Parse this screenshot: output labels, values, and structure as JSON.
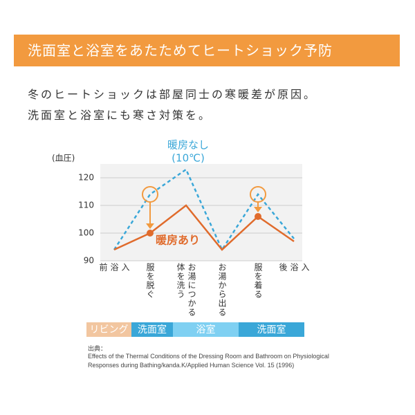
{
  "header": {
    "title": "洗面室と浴室をあたためてヒートショック予防"
  },
  "intro": [
    "冬のヒートショックは部屋同士の寒暖差が原因。",
    "洗面室と浴室にも寒さ対策を。"
  ],
  "chart_data": {
    "type": "line",
    "y_label": "(血圧)",
    "categories": [
      [
        "入",
        "浴",
        "前"
      ],
      [
        "服を脱ぐ"
      ],
      [
        "お湯につかる",
        "体を洗う"
      ],
      [
        "お湯から出る"
      ],
      [
        "服を着る"
      ],
      [
        "入",
        "浴",
        "後"
      ]
    ],
    "ylim": [
      90,
      125
    ],
    "yticks": [
      90,
      100,
      110,
      120
    ],
    "grid": true,
    "series": [
      {
        "name": "暖房なし",
        "color": "#3aa7d8",
        "dashed": true,
        "values": [
          94,
          114,
          123,
          94,
          114,
          98
        ]
      },
      {
        "name": "暖房あり",
        "color": "#e06b2c",
        "dashed": false,
        "values": [
          94,
          100,
          110,
          94,
          106,
          97
        ]
      }
    ],
    "annotation": "(10℃)",
    "rooms": [
      {
        "label": "リビング",
        "color": "#f2c6a0"
      },
      {
        "label": "洗面室",
        "color": "#3aa7d8"
      },
      {
        "label": "浴室",
        "color": "#7fd0f2"
      },
      {
        "label": "洗面室",
        "color": "#3aa7d8"
      }
    ]
  },
  "source": {
    "label": "出典：",
    "lines": [
      "Effects of the Thermal Conditions of the Dressing Room and Bathroom on Physiological",
      "Responses during Bathing/kanda.K/Applied Human Science Vol. 15 (1996)"
    ]
  }
}
